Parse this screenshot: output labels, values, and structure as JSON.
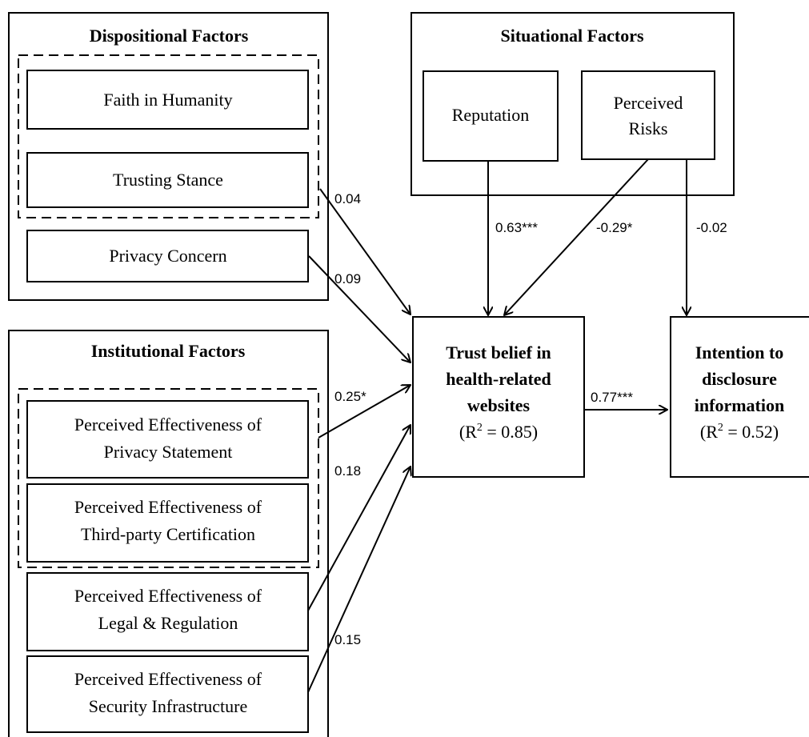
{
  "groups": {
    "dispositional": {
      "title": "Dispositional Factors",
      "items": {
        "faith": "Faith in Humanity",
        "stance": "Trusting Stance",
        "privacy_concern": "Privacy Concern"
      }
    },
    "situational": {
      "title": "Situational Factors",
      "items": {
        "reputation": "Reputation",
        "risks_line1": "Perceived",
        "risks_line2": "Risks"
      }
    },
    "institutional": {
      "title": "Institutional Factors",
      "items": {
        "privacy_stmt_line1": "Perceived Effectiveness of",
        "privacy_stmt_line2": "Privacy Statement",
        "third_party_line1": "Perceived Effectiveness of",
        "third_party_line2": "Third-party Certification",
        "legal_line1": "Perceived Effectiveness of",
        "legal_line2": "Legal & Regulation",
        "security_line1": "Perceived Effectiveness of",
        "security_line2": "Security Infrastructure"
      }
    }
  },
  "outcomes": {
    "trust": {
      "line1": "Trust belief in",
      "line2": "health-related",
      "line3": "websites",
      "r2_prefix": "(R",
      "r2_exp": "2",
      "r2_suffix": " = 0.85)"
    },
    "intention": {
      "line1": "Intention to",
      "line2": "disclosure",
      "line3": "information",
      "r2_prefix": "(R",
      "r2_exp": "2",
      "r2_suffix": " = 0.52)"
    }
  },
  "paths": {
    "trusting_stance_to_trust": "0.04",
    "privacy_concern_to_trust": "0.09",
    "reputation_to_trust": "0.63***",
    "risks_to_trust": "-0.29*",
    "risks_to_intention": "-0.02",
    "privacy_statement_to_trust": "0.25*",
    "legal_to_trust": "0.18",
    "security_to_trust": "0.15",
    "trust_to_intention": "0.77***"
  }
}
